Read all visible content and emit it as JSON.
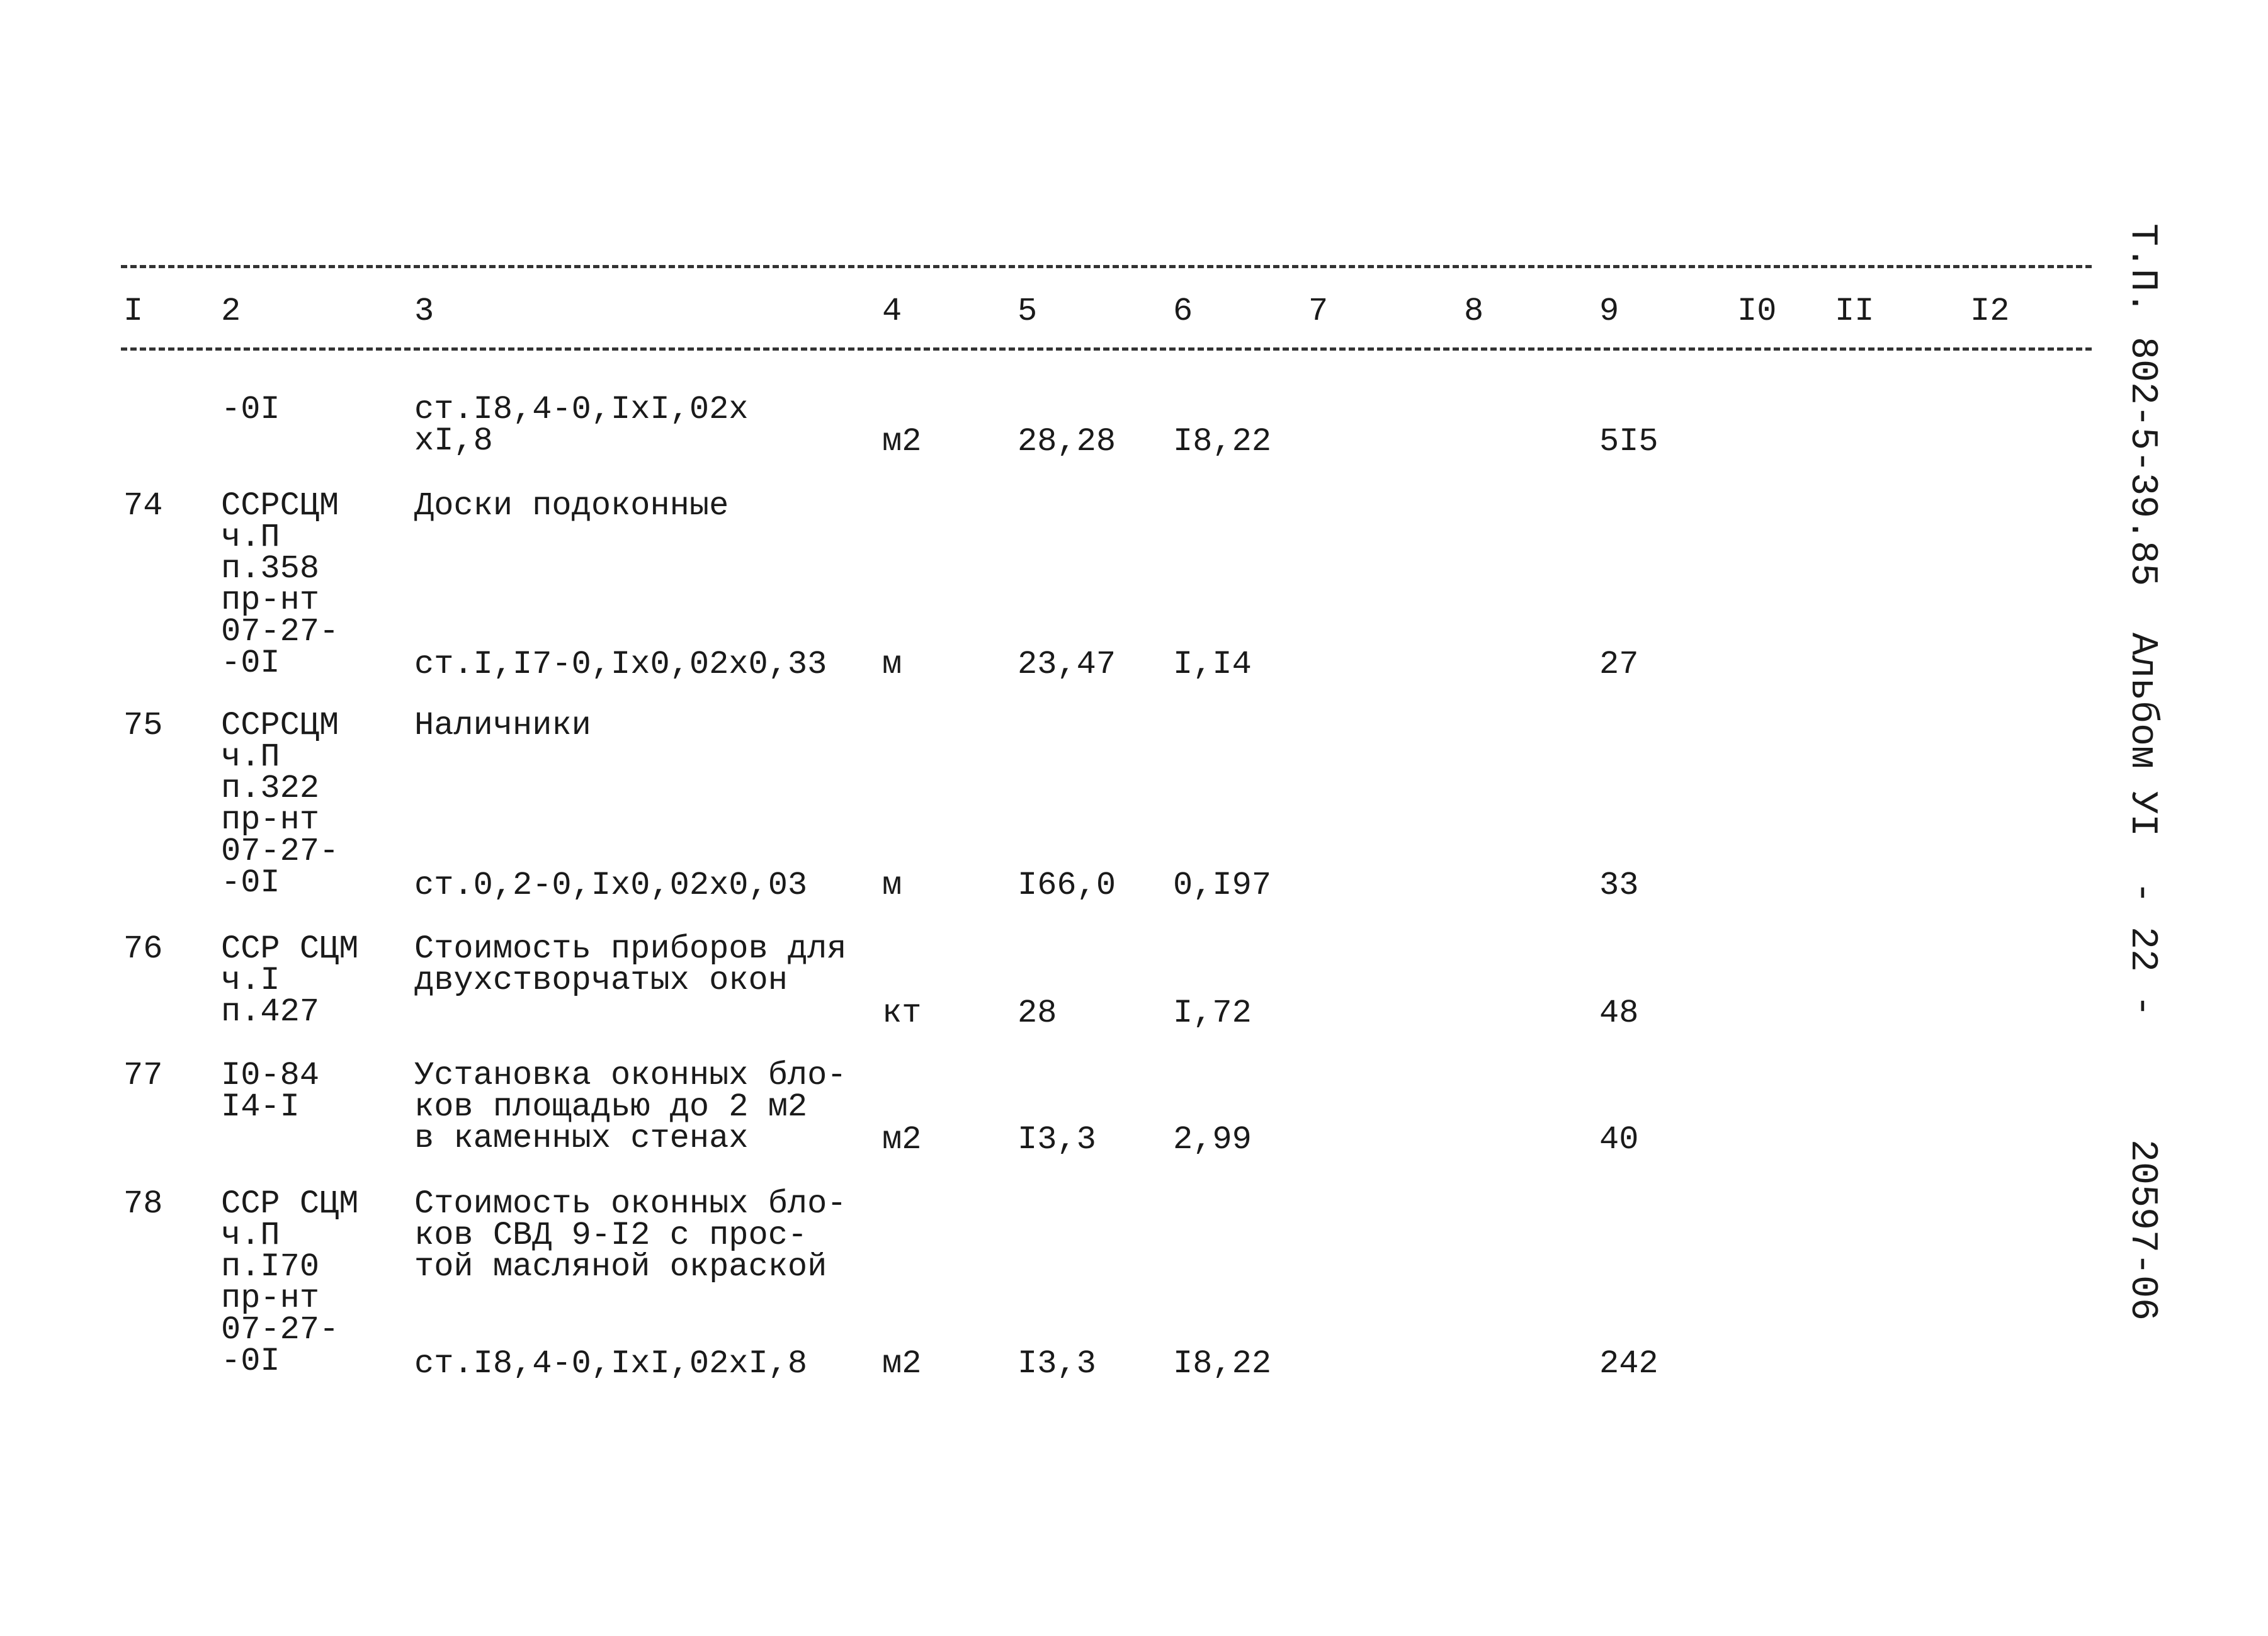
{
  "header": {
    "columns": [
      "I",
      "2",
      "3",
      "4",
      "5",
      "6",
      "7",
      "8",
      "9",
      "I0",
      "II",
      "I2"
    ]
  },
  "rows": [
    {
      "num": "",
      "ref": "-0I",
      "desc": "",
      "spec": "ст.I8,4-0,IxI,02x\nxI,8",
      "unit": "м2",
      "qty": "28,28",
      "price": "I8,22",
      "total": "5I5"
    },
    {
      "num": "74",
      "ref": "ССРСЦМ\nч.П\nп.358\nпр-нт\n07-27-\n-0I",
      "desc": "Доски подоконные",
      "spec": "ст.I,I7-0,Ix0,02x0,33",
      "unit": "м",
      "qty": "23,47",
      "price": "I,I4",
      "total": "27"
    },
    {
      "num": "75",
      "ref": "ССРСЦМ\nч.П\nп.322\nпр-нт\n07-27-\n-0I",
      "desc": "Наличники",
      "spec": "ст.0,2-0,Ix0,02x0,03",
      "unit": "м",
      "qty": "I66,0",
      "price": "0,I97",
      "total": "33"
    },
    {
      "num": "76",
      "ref": "ССР СЦМ\nч.I\nп.427",
      "desc": "Стоимость приборов для\nдвухстворчатых окон",
      "spec": "",
      "unit": "кт",
      "qty": "28",
      "price": "I,72",
      "total": "48"
    },
    {
      "num": "77",
      "ref": "I0-84\nI4-I",
      "desc": "Установка оконных бло-\nков площадью до 2 м2\nв каменных стенах",
      "spec": "",
      "unit": "м2",
      "qty": "I3,3",
      "price": "2,99",
      "total": "40"
    },
    {
      "num": "78",
      "ref": "ССР СЦМ\nч.П\nп.I70\nпр-нт\n07-27-\n-0I",
      "desc": "Стоимость оконных бло-\nков СВД 9-I2 с прос-\nтой масляной окраской",
      "spec": "ст.I8,4-0,IxI,02xI,8",
      "unit": "м2",
      "qty": "I3,3",
      "price": "I8,22",
      "total": "242"
    }
  ],
  "margin": {
    "code": "Т.П. 802-5-39.85",
    "album": "Альбом УI",
    "page": "- 22 -",
    "number": "20597-06"
  }
}
